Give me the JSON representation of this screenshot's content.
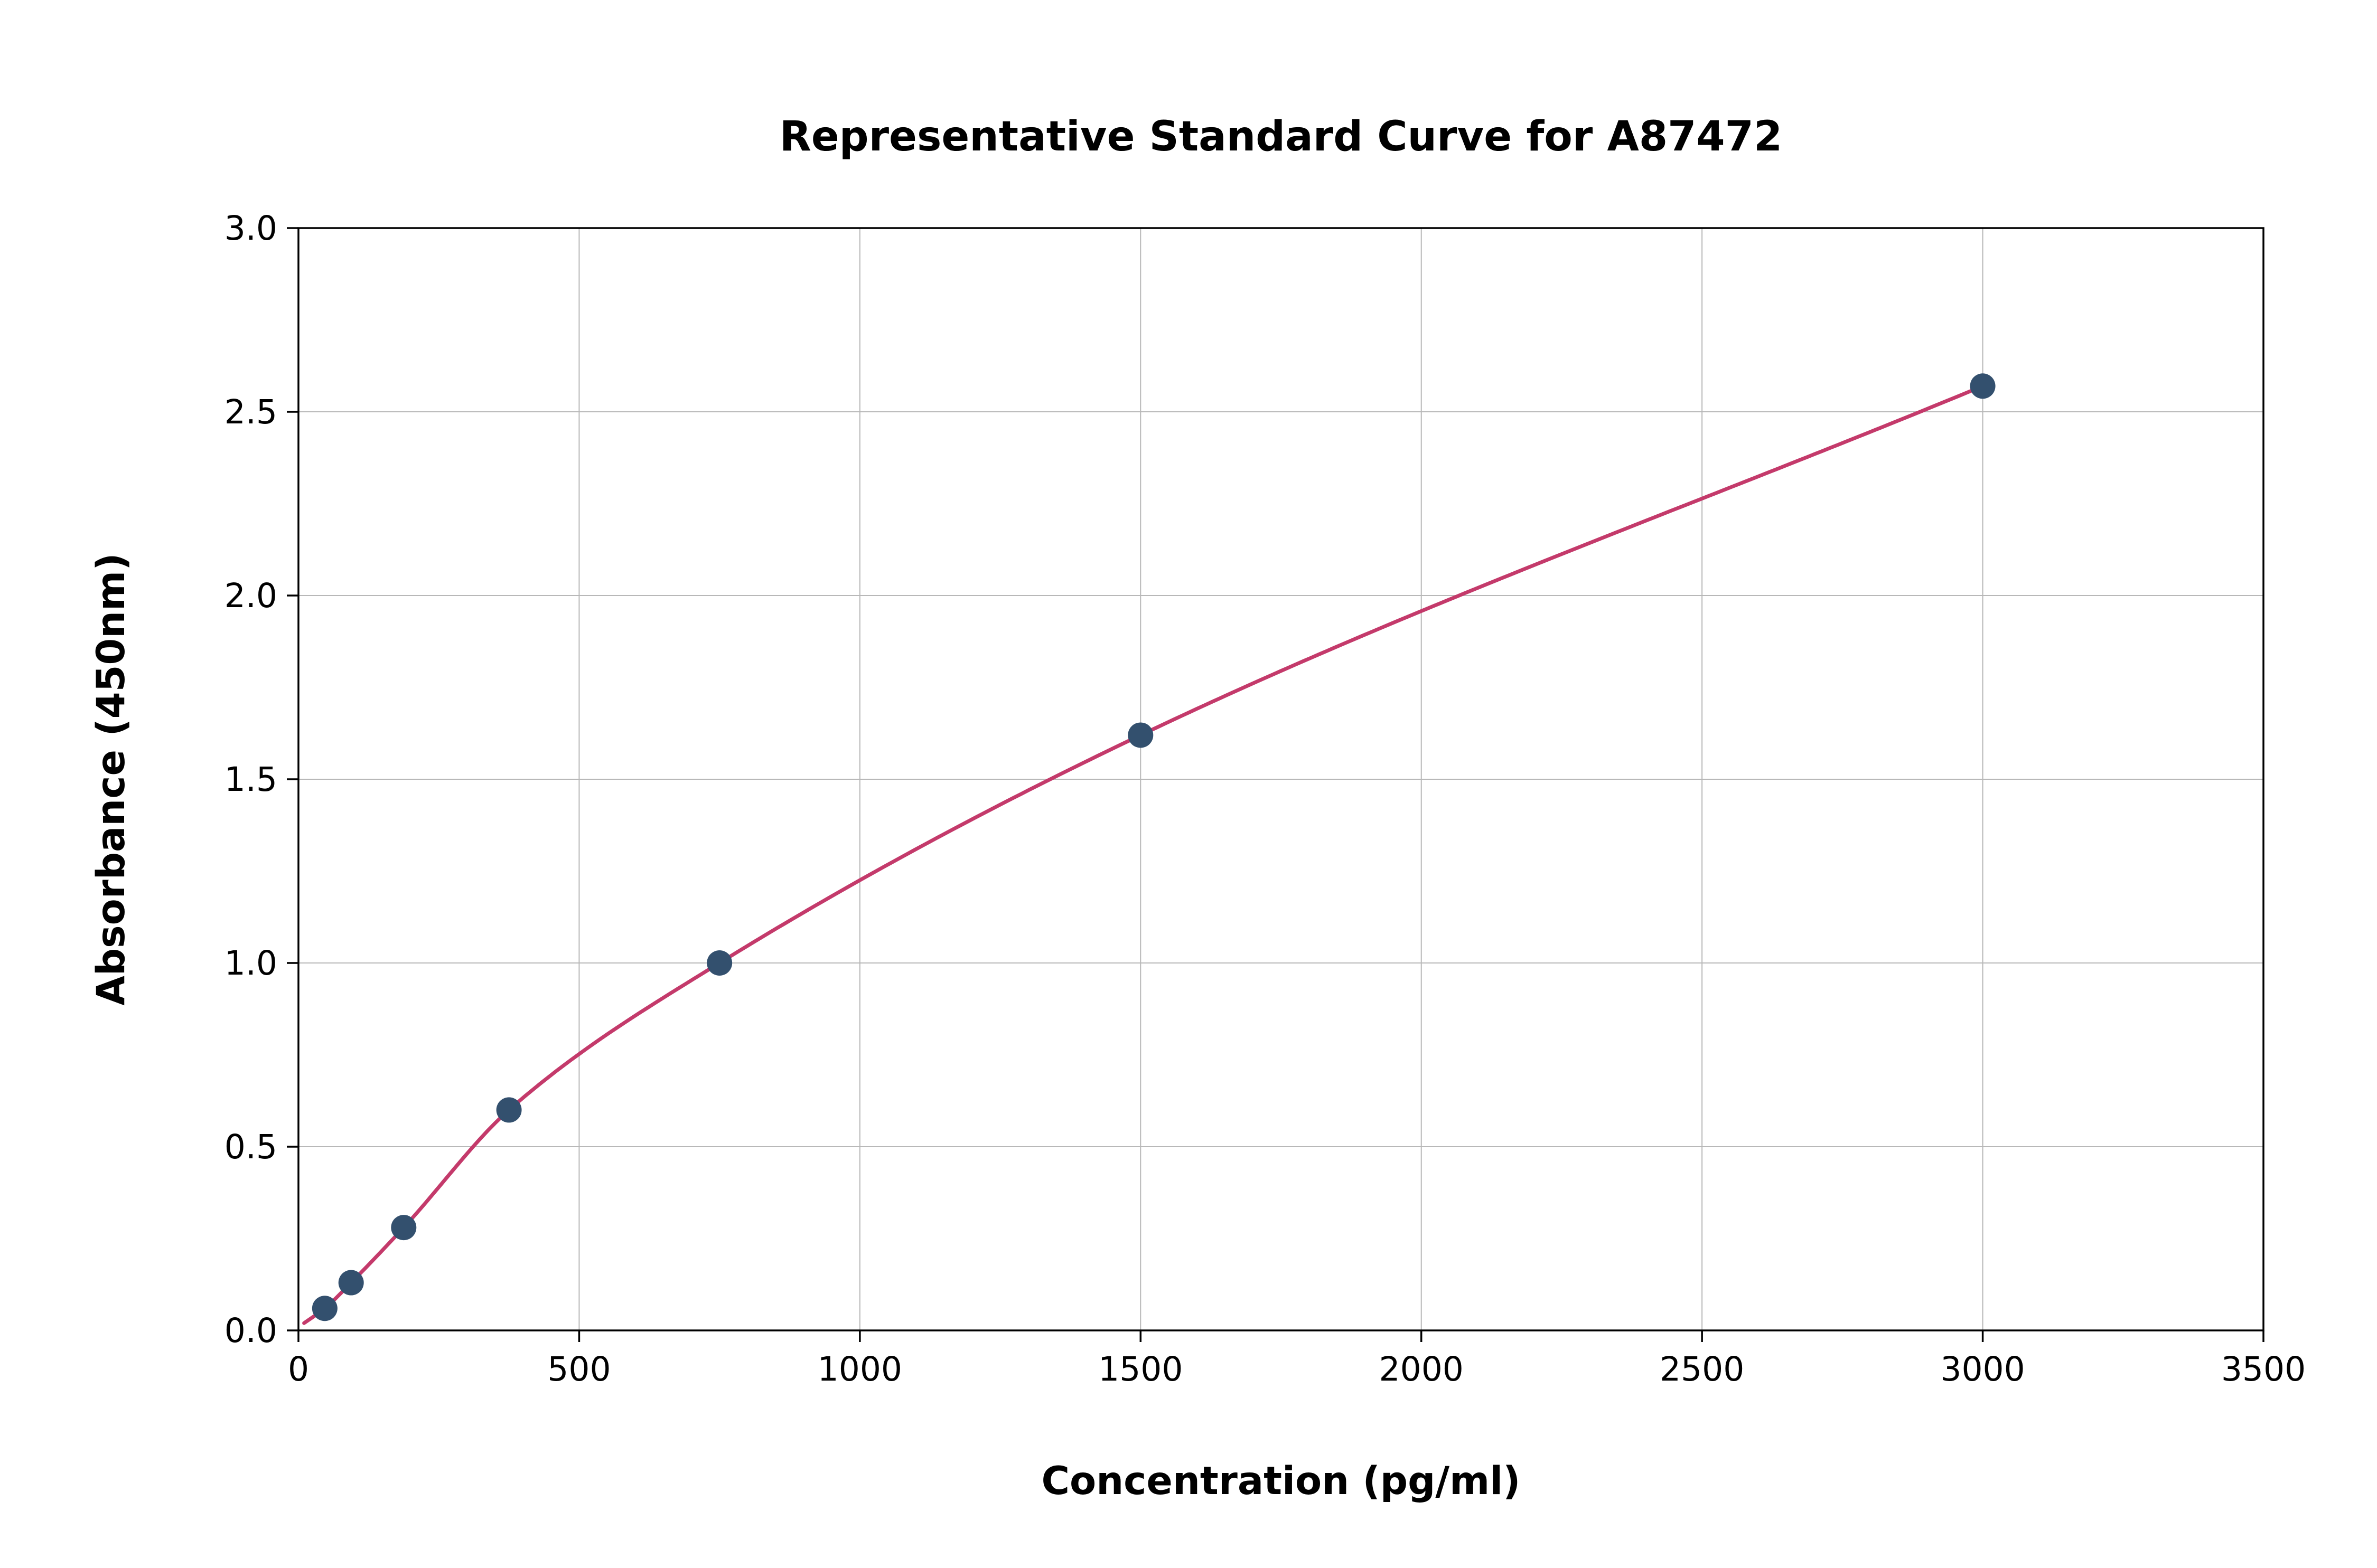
{
  "chart_data": {
    "type": "scatter",
    "title": "Representative Standard Curve for A87472",
    "xlabel": "Concentration (pg/ml)",
    "ylabel": "Absorbance (450nm)",
    "xlim": [
      0,
      3500
    ],
    "ylim": [
      0.0,
      3.0
    ],
    "xticks": [
      0,
      500,
      1000,
      1500,
      2000,
      2500,
      3000,
      3500
    ],
    "xtick_labels": [
      "0",
      "500",
      "1000",
      "1500",
      "2000",
      "2500",
      "3000",
      "3500"
    ],
    "yticks": [
      0.0,
      0.5,
      1.0,
      1.5,
      2.0,
      2.5,
      3.0
    ],
    "ytick_labels": [
      "0.0",
      "0.5",
      "1.0",
      "1.5",
      "2.0",
      "2.5",
      "3.0"
    ],
    "grid": true,
    "legend": "none",
    "series": [
      {
        "name": "standard-points",
        "x": [
          46.9,
          93.8,
          187.5,
          375,
          750,
          1500,
          3000
        ],
        "y": [
          0.06,
          0.13,
          0.28,
          0.6,
          1.0,
          1.62,
          2.57
        ]
      }
    ],
    "fit_curve": {
      "description": "smooth saturating fit through standard points",
      "start": [
        10,
        0.02
      ],
      "end": [
        3000,
        2.57
      ]
    },
    "colors": {
      "point_color": "#33506e",
      "curve_color": "#c43a6b",
      "grid_color": "#b8b8b8",
      "spine_color": "#000000",
      "background": "#ffffff"
    }
  }
}
